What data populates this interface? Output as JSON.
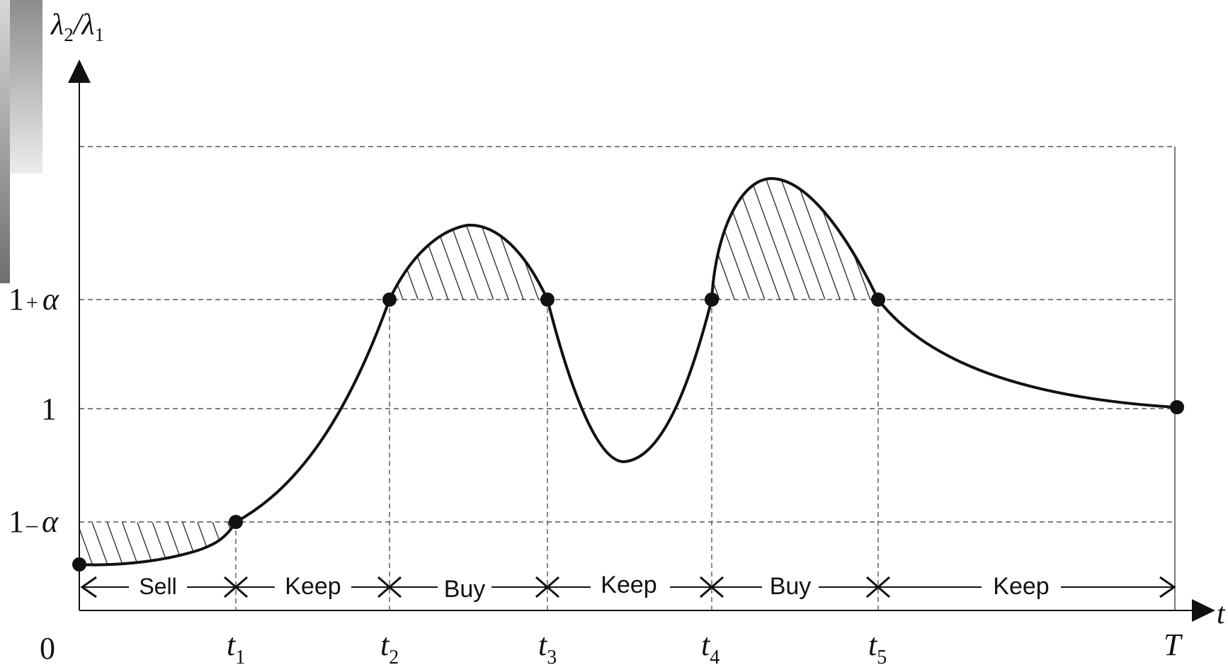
{
  "y_axis": {
    "label": "λ",
    "label_sub1": "2",
    "label_mid": "/λ",
    "label_sub2": "1"
  },
  "x_axis": {
    "label": "t",
    "origin_label": "0",
    "end_label": "T"
  },
  "y_ticks": {
    "upper": {
      "base": "1",
      "op": "+",
      "sym": "α",
      "value": 1.1
    },
    "one": {
      "label": "1",
      "value": 1.0
    },
    "lower": {
      "base": "1",
      "op": "–",
      "sym": "α",
      "value": 0.9
    }
  },
  "x_ticks": [
    {
      "base": "t",
      "sub": "1"
    },
    {
      "base": "t",
      "sub": "2"
    },
    {
      "base": "t",
      "sub": "3"
    },
    {
      "base": "t",
      "sub": "4"
    },
    {
      "base": "t",
      "sub": "5"
    }
  ],
  "regions": [
    {
      "label": "Sell"
    },
    {
      "label": "Keep"
    },
    {
      "label": "Buy"
    },
    {
      "label": "Keep"
    },
    {
      "label": "Buy"
    },
    {
      "label": "Keep"
    }
  ],
  "colors": {
    "ink": "#111111",
    "dash": "#555555",
    "gradient_top": "#e4e4e4",
    "gradient_bottom": "#7a7a7a"
  }
}
